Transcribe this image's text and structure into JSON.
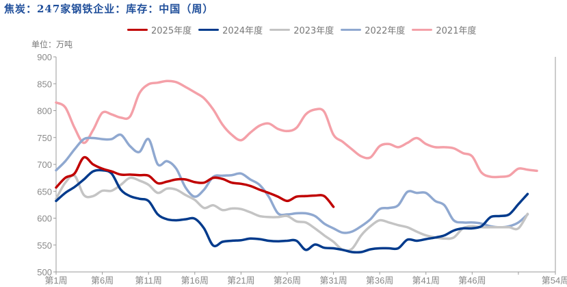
{
  "chart_data": {
    "type": "line",
    "title": "焦炭：247家钢铁企业：库存：中国（周）",
    "unit_label": "单位：万吨",
    "ylim": [
      500,
      900
    ],
    "yticks": [
      500,
      550,
      600,
      650,
      700,
      750,
      800,
      850,
      900
    ],
    "xlim": [
      1,
      55
    ],
    "xticks": [
      {
        "week": 1,
        "label": "第1周"
      },
      {
        "week": 6,
        "label": "第6周"
      },
      {
        "week": 11,
        "label": "第11周"
      },
      {
        "week": 16,
        "label": "第16周"
      },
      {
        "week": 21,
        "label": "第21周"
      },
      {
        "week": 26,
        "label": "第26周"
      },
      {
        "week": 31,
        "label": "第31周"
      },
      {
        "week": 36,
        "label": "第36周"
      },
      {
        "week": 41,
        "label": "第41周"
      },
      {
        "week": 46,
        "label": "第46周"
      },
      {
        "week": 51,
        "label": ""
      },
      {
        "week": 55,
        "label": "第54周"
      }
    ],
    "grid": false,
    "legend_position": "top",
    "series": [
      {
        "name": "2025年度",
        "color": "#c00000",
        "values": [
          657,
          675,
          683,
          713,
          700,
          692,
          687,
          681,
          681,
          680,
          679,
          665,
          668,
          672,
          672,
          667,
          666,
          675,
          673,
          666,
          664,
          660,
          653,
          647,
          640,
          632,
          640,
          641,
          642,
          641,
          621
        ]
      },
      {
        "name": "2024年度",
        "color": "#003a8c",
        "values": [
          632,
          647,
          658,
          672,
          687,
          689,
          683,
          653,
          641,
          636,
          632,
          607,
          598,
          596,
          598,
          599,
          581,
          549,
          556,
          558,
          559,
          562,
          561,
          558,
          557,
          558,
          558,
          541,
          551,
          545,
          544,
          541,
          537,
          537,
          542,
          544,
          544,
          544,
          560,
          558,
          561,
          564,
          568,
          577,
          581,
          581,
          585,
          602,
          604,
          607,
          626,
          645
        ]
      },
      {
        "name": "2023年度",
        "color": "#c4c4c4",
        "values": [
          636,
          666,
          679,
          643,
          641,
          651,
          651,
          662,
          675,
          670,
          662,
          647,
          655,
          653,
          643,
          634,
          619,
          624,
          615,
          618,
          617,
          611,
          604,
          602,
          602,
          604,
          594,
          592,
          581,
          568,
          556,
          541,
          543,
          568,
          585,
          596,
          592,
          587,
          583,
          575,
          568,
          564,
          562,
          564,
          581,
          585,
          583,
          583,
          583,
          583,
          581,
          608
        ]
      },
      {
        "name": "2022年度",
        "color": "#8fa8d0",
        "values": [
          689,
          706,
          728,
          747,
          749,
          747,
          747,
          755,
          734,
          723,
          747,
          700,
          706,
          692,
          657,
          640,
          653,
          677,
          679,
          680,
          683,
          672,
          662,
          640,
          609,
          607,
          609,
          609,
          604,
          590,
          581,
          573,
          575,
          585,
          598,
          617,
          619,
          624,
          649,
          647,
          647,
          632,
          624,
          596,
          592,
          592,
          590,
          585,
          583,
          585,
          592,
          607
        ]
      },
      {
        "name": "2021年度",
        "color": "#f4a0a8",
        "values": [
          815,
          806,
          768,
          740,
          764,
          796,
          793,
          787,
          789,
          832,
          849,
          852,
          855,
          853,
          844,
          834,
          823,
          802,
          774,
          755,
          745,
          759,
          772,
          776,
          766,
          762,
          768,
          793,
          802,
          798,
          755,
          742,
          728,
          715,
          713,
          734,
          738,
          732,
          740,
          749,
          738,
          732,
          732,
          730,
          721,
          715,
          685,
          677,
          677,
          679,
          692,
          690,
          688
        ]
      }
    ]
  }
}
